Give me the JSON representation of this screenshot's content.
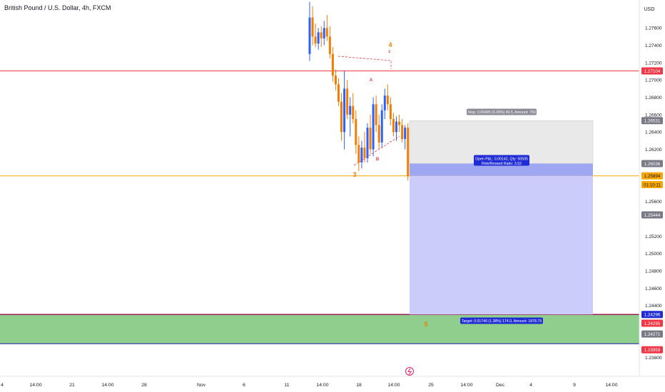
{
  "symbol_title": "British Pound / U.S. Dollar, 4h, FXCM",
  "currency": "USD",
  "chart_data": {
    "type": "candlestick",
    "ylim": [
      1.2369,
      1.2784
    ],
    "y_ticks": [
      "1.27600",
      "1.27400",
      "1.27200",
      "1.27000",
      "1.26800",
      "1.26600",
      "1.26400",
      "1.26200",
      "1.25600",
      "1.25200",
      "1.25000",
      "1.24800",
      "1.24600",
      "1.24400",
      "1.23800"
    ],
    "x_ticks": [
      "4",
      "14:00",
      "21",
      "14:00",
      "28",
      "Nov",
      "6",
      "11",
      "14:00",
      "18",
      "14:00",
      "25",
      "14:00",
      "Dec",
      "4",
      "9",
      "14:00"
    ],
    "candles": [
      {
        "o": 1.273,
        "h": 1.279,
        "l": 1.2722,
        "c": 1.2772
      },
      {
        "o": 1.2772,
        "h": 1.2785,
        "l": 1.274,
        "c": 1.275
      },
      {
        "o": 1.275,
        "h": 1.2765,
        "l": 1.2738,
        "c": 1.2742
      },
      {
        "o": 1.2742,
        "h": 1.276,
        "l": 1.2735,
        "c": 1.2755
      },
      {
        "o": 1.2755,
        "h": 1.2762,
        "l": 1.2738,
        "c": 1.2748
      },
      {
        "o": 1.2748,
        "h": 1.2768,
        "l": 1.274,
        "c": 1.276
      },
      {
        "o": 1.276,
        "h": 1.2775,
        "l": 1.2745,
        "c": 1.275
      },
      {
        "o": 1.275,
        "h": 1.2762,
        "l": 1.2725,
        "c": 1.273
      },
      {
        "o": 1.273,
        "h": 1.2738,
        "l": 1.2698,
        "c": 1.2705
      },
      {
        "o": 1.2705,
        "h": 1.2712,
        "l": 1.2688,
        "c": 1.2695
      },
      {
        "o": 1.2695,
        "h": 1.2702,
        "l": 1.267,
        "c": 1.2675
      },
      {
        "o": 1.2675,
        "h": 1.2685,
        "l": 1.263,
        "c": 1.264
      },
      {
        "o": 1.264,
        "h": 1.271,
        "l": 1.262,
        "c": 1.269
      },
      {
        "o": 1.269,
        "h": 1.27,
        "l": 1.2655,
        "c": 1.266
      },
      {
        "o": 1.266,
        "h": 1.268,
        "l": 1.2635,
        "c": 1.267
      },
      {
        "o": 1.267,
        "h": 1.2685,
        "l": 1.265,
        "c": 1.2655
      },
      {
        "o": 1.2655,
        "h": 1.2665,
        "l": 1.2615,
        "c": 1.2625
      },
      {
        "o": 1.2625,
        "h": 1.2635,
        "l": 1.2595,
        "c": 1.2605
      },
      {
        "o": 1.2605,
        "h": 1.263,
        "l": 1.2598,
        "c": 1.2622
      },
      {
        "o": 1.2622,
        "h": 1.264,
        "l": 1.2605,
        "c": 1.261
      },
      {
        "o": 1.261,
        "h": 1.265,
        "l": 1.2605,
        "c": 1.2645
      },
      {
        "o": 1.2645,
        "h": 1.266,
        "l": 1.2615,
        "c": 1.262
      },
      {
        "o": 1.262,
        "h": 1.268,
        "l": 1.2612,
        "c": 1.2672
      },
      {
        "o": 1.2672,
        "h": 1.2682,
        "l": 1.264,
        "c": 1.2648
      },
      {
        "o": 1.2648,
        "h": 1.266,
        "l": 1.262,
        "c": 1.2628
      },
      {
        "o": 1.2628,
        "h": 1.2672,
        "l": 1.2622,
        "c": 1.2665
      },
      {
        "o": 1.2665,
        "h": 1.269,
        "l": 1.2655,
        "c": 1.2682
      },
      {
        "o": 1.2682,
        "h": 1.2695,
        "l": 1.2665,
        "c": 1.2672
      },
      {
        "o": 1.2672,
        "h": 1.268,
        "l": 1.2648,
        "c": 1.2655
      },
      {
        "o": 1.2655,
        "h": 1.2662,
        "l": 1.2635,
        "c": 1.264
      },
      {
        "o": 1.264,
        "h": 1.2658,
        "l": 1.263,
        "c": 1.2652
      },
      {
        "o": 1.2652,
        "h": 1.266,
        "l": 1.264,
        "c": 1.2648
      },
      {
        "o": 1.2648,
        "h": 1.2655,
        "l": 1.2628,
        "c": 1.2632
      },
      {
        "o": 1.2632,
        "h": 1.2648,
        "l": 1.262,
        "c": 1.2645
      },
      {
        "o": 1.2645,
        "h": 1.265,
        "l": 1.2584,
        "c": 1.2589
      }
    ],
    "horizontal_lines": [
      {
        "price": 1.27104,
        "color": "#f23645"
      },
      {
        "price": 1.25894,
        "color": "#f7a600"
      }
    ],
    "wave_labels": [
      {
        "text": "4",
        "color": "#f57c00"
      },
      {
        "text": "c",
        "color": "#f23645"
      },
      {
        "text": "A",
        "color": "#f23645"
      },
      {
        "text": "B",
        "color": "#f23645"
      },
      {
        "text": "3",
        "color": "#f57c00"
      },
      {
        "text": "5",
        "color": "#f57c00"
      }
    ],
    "position": {
      "entry": 1.26036,
      "stop": 1.26531,
      "target": 1.24296,
      "stop_label": "Stop: 0.00495 (0.39%) 49.5, Amount: 750",
      "pnl_label": "Open P&L: 0.00142, Qty: 50505",
      "rr_label": "Risk/Reward Ratio: 3.52",
      "target_label": "Target: 0.01740 (1.38%) 174.0, Amount: 1878.79"
    },
    "zone": {
      "top": 1.24296,
      "bottom": 1.23959,
      "fill": "#8fce8d"
    },
    "price_badges": [
      {
        "text": "1.27104",
        "price": 1.27104,
        "bg": "#f23645",
        "fg": "#ffffff"
      },
      {
        "text": "1.26531",
        "price": 1.26531,
        "bg": "#787b86",
        "fg": "#ffffff"
      },
      {
        "text": "1.26036",
        "price": 1.26036,
        "bg": "#787b86",
        "fg": "#ffffff"
      },
      {
        "text": "1.25894",
        "price": 1.25894,
        "bg": "#f7a600",
        "fg": "#131722"
      },
      {
        "text": "01:10:11",
        "price": 1.25794,
        "bg": "#f7a600",
        "fg": "#131722"
      },
      {
        "text": "1.25444",
        "price": 1.25444,
        "bg": "#787b86",
        "fg": "#ffffff"
      },
      {
        "text": "1.24296",
        "price": 1.24296,
        "bg": "#1e2bd6",
        "fg": "#ffffff"
      },
      {
        "text": "1.24295",
        "price": 1.24195,
        "bg": "#f23645",
        "fg": "#ffffff"
      },
      {
        "text": "1.24271",
        "price": 1.24071,
        "bg": "#787b86",
        "fg": "#ffffff"
      },
      {
        "text": "1.23959",
        "price": 1.23889,
        "bg": "#f23645",
        "fg": "#ffffff"
      }
    ],
    "colors": {
      "up": "#2962ff",
      "down": "#f57c00",
      "bg": "#ffffff",
      "axis_text": "#131722",
      "grid": "#f0f3fa"
    }
  }
}
